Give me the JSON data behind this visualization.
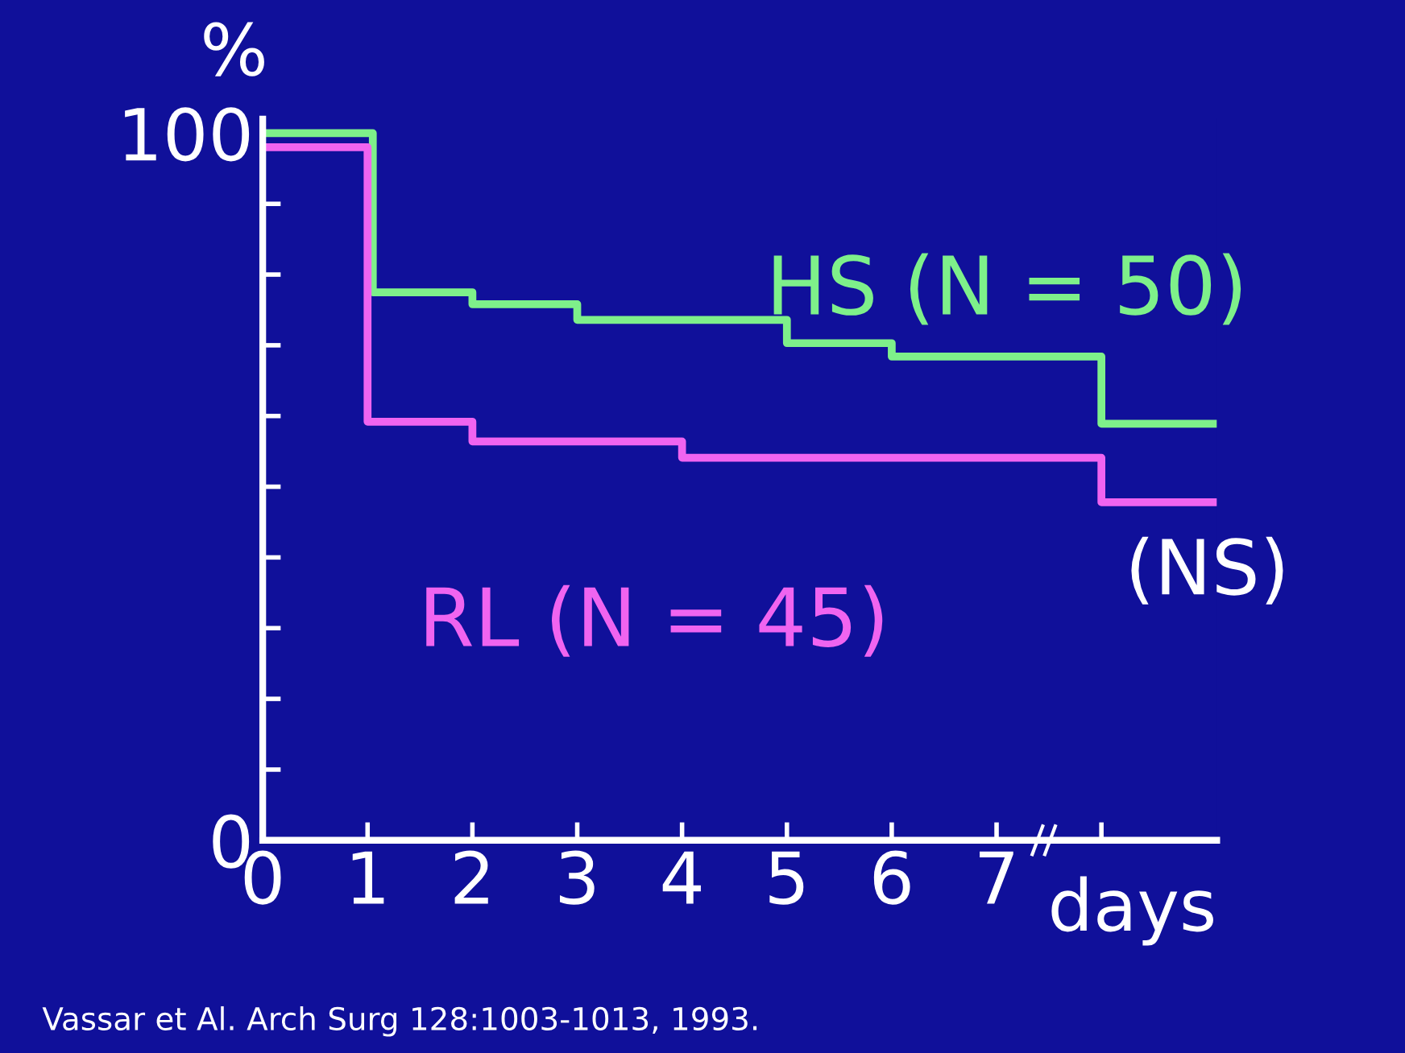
{
  "chart_data": {
    "type": "step",
    "ylabel": "%",
    "xlabel": "days",
    "xlim": [
      0,
      9.1
    ],
    "ylim": [
      0,
      102
    ],
    "xticks": [
      0,
      1,
      2,
      3,
      4,
      5,
      6,
      7,
      {
        "value": 8,
        "label": null
      }
    ],
    "yticks": [
      0,
      {
        "value": 10,
        "label": null
      },
      {
        "value": 20,
        "label": null
      },
      {
        "value": 30,
        "label": null
      },
      {
        "value": 40,
        "label": null
      },
      {
        "value": 50,
        "label": null
      },
      {
        "value": 60,
        "label": null
      },
      {
        "value": 70,
        "label": null
      },
      {
        "value": 80,
        "label": null
      },
      {
        "value": 90,
        "label": null
      },
      100
    ],
    "series": [
      {
        "name": "HS (N = 50)",
        "color": "#7ef08a",
        "x": [
          0,
          1.05,
          2,
          3,
          5,
          6,
          8,
          9.1
        ],
        "values": [
          100,
          77.5,
          75.8,
          73.6,
          70.3,
          68.4,
          58.9,
          58.9
        ]
      },
      {
        "name": "RL (N = 45)",
        "color": "#f064f0",
        "x": [
          0,
          1,
          2,
          4,
          8,
          9.1
        ],
        "values": [
          98,
          59.2,
          56.4,
          54.1,
          47.8,
          47.8
        ]
      }
    ],
    "annotations": [
      "(NS)",
      "Vassar et Al. Arch Surg 128:1003-1013, 1993."
    ],
    "legend": false,
    "grid": false
  }
}
